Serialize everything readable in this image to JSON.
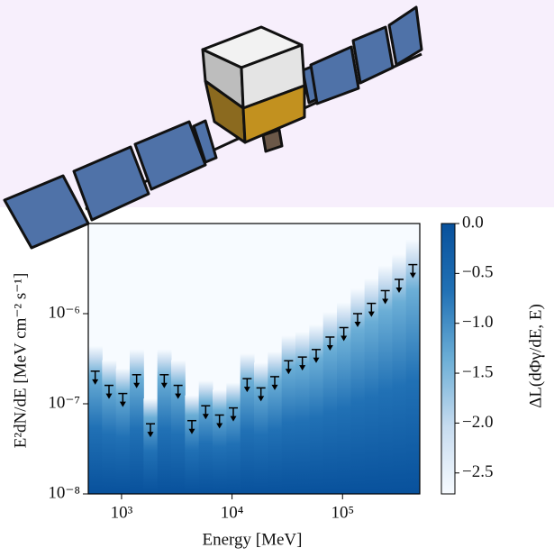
{
  "chart_data": {
    "type": "castro",
    "xlabel": "Energy [MeV]",
    "ylabel": "E²dN/dE [MeV cm⁻² s⁻¹]",
    "colorbar_label": "ΔL(dΦγ/dE, E)",
    "colormap": "Blues",
    "log_x": true,
    "log_y": true,
    "xlim": [
      500,
      500000
    ],
    "ylim": [
      1e-08,
      1e-05
    ],
    "xticks": [
      {
        "value": 1000,
        "label": "10³"
      },
      {
        "value": 10000,
        "label": "10⁴"
      },
      {
        "value": 100000,
        "label": "10⁵"
      }
    ],
    "yticks": [
      {
        "value": 1e-08,
        "label": "10⁻⁸"
      },
      {
        "value": 1e-07,
        "label": "10⁻⁷"
      },
      {
        "value": 1e-06,
        "label": "10⁻⁶"
      }
    ],
    "bins": [
      500,
      666.8,
      889.1,
      1185.6,
      1581.1,
      2108.5,
      2811.7,
      3749.5,
      5000,
      6667.6,
      8891.4,
      11857,
      15811,
      21085,
      28117,
      37495,
      50000,
      66676,
      88914,
      118568,
      158114,
      210848,
      281171,
      374947,
      500000
    ],
    "upper_limits": [
      2.3e-07,
      1.6e-07,
      1.3e-07,
      2.1e-07,
      6e-08,
      2.1e-07,
      1.6e-07,
      6.5e-08,
      9.5e-08,
      7.5e-08,
      9e-08,
      1.9e-07,
      1.5e-07,
      2e-07,
      3e-07,
      3.3e-07,
      4e-07,
      5.5e-07,
      7e-07,
      1e-06,
      1.3e-06,
      1.8e-06,
      2.4e-06,
      3.5e-06
    ],
    "clim": [
      -2.71,
      0
    ],
    "cticks": [
      {
        "value": 0,
        "label": "0.0"
      },
      {
        "value": -0.5,
        "label": "−0.5"
      },
      {
        "value": -1,
        "label": "−1.0"
      },
      {
        "value": -1.5,
        "label": "−1.5"
      },
      {
        "value": -2,
        "label": "−2.0"
      },
      {
        "value": -2.5,
        "label": "−2.5"
      }
    ]
  }
}
